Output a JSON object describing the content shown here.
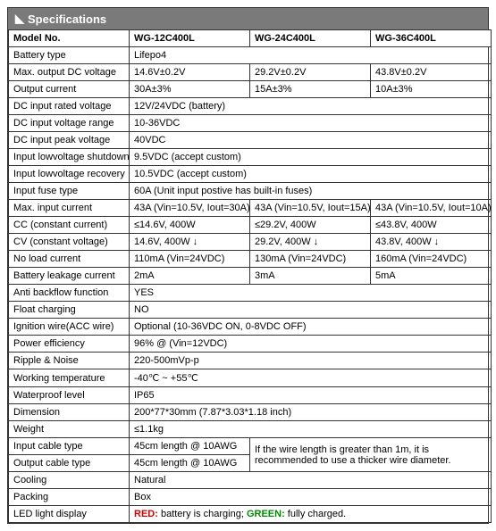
{
  "header": {
    "icon": "◣",
    "title": "Specifications"
  },
  "rows": {
    "model": {
      "label": "Model No.",
      "v1": "WG-12C400L",
      "v2": "WG-24C400L",
      "v3": "WG-36C400L"
    },
    "battery": {
      "label": "Battery type",
      "value": "Lifepo4"
    },
    "maxdc": {
      "label": "Max. output DC voltage",
      "v1": "14.6V±0.2V",
      "v2": "29.2V±0.2V",
      "v3": "43.8V±0.2V"
    },
    "outcur": {
      "label": "Output current",
      "v1": "30A±3%",
      "v2": "15A±3%",
      "v3": "10A±3%"
    },
    "dcin_rated": {
      "label": "DC input rated voltage",
      "value": "12V/24VDC (battery)"
    },
    "dcin_range": {
      "label": "DC input voltage range",
      "value": "10-36VDC"
    },
    "dcin_peak": {
      "label": "DC input peak voltage",
      "value": "40VDC"
    },
    "lv_shut": {
      "label": "Input lowvoltage shutdown",
      "value": "9.5VDC (accept custom)"
    },
    "lv_rec": {
      "label": "Input lowvoltage recovery",
      "value": "10.5VDC (accept custom)"
    },
    "fuse": {
      "label": "Input fuse type",
      "value": "60A (Unit input postive has built-in fuses)"
    },
    "maxin": {
      "label": "Max. input current",
      "v1": "43A (Vin=10.5V, Iout=30A)",
      "v2": "43A (Vin=10.5V, Iout=15A)",
      "v3": "43A (Vin=10.5V, Iout=10A)"
    },
    "cc": {
      "label": "CC (constant current)",
      "v1": "≤14.6V, 400W",
      "v2": "≤29.2V, 400W",
      "v3": "≤43.8V, 400W"
    },
    "cv": {
      "label": "CV (constant voltage)",
      "v1": "14.6V, 400W ↓",
      "v2": "29.2V, 400W ↓",
      "v3": "43.8V, 400W ↓"
    },
    "noload": {
      "label": "No load current",
      "v1": "110mA (Vin=24VDC)",
      "v2": "130mA (Vin=24VDC)",
      "v3": "160mA (Vin=24VDC)"
    },
    "leak": {
      "label": "Battery leakage current",
      "v1": "2mA",
      "v2": "3mA",
      "v3": "5mA"
    },
    "backflow": {
      "label": "Anti backflow function",
      "value": "YES"
    },
    "float": {
      "label": "Float charging",
      "value": "NO"
    },
    "ign": {
      "label": "Ignition wire(ACC wire)",
      "value": "Optional (10-36VDC ON, 0-8VDC OFF)"
    },
    "eff": {
      "label": "Power efficiency",
      "value": "96% @ (Vin=12VDC)"
    },
    "ripple": {
      "label": "Ripple & Noise",
      "value": "220-500mVp-p"
    },
    "temp": {
      "label": "Working temperature",
      "value": "-40℃ ~ +55℃"
    },
    "wp": {
      "label": "Waterproof level",
      "value": "IP65"
    },
    "dim": {
      "label": "Dimension",
      "value": "200*77*30mm (7.87*3.03*1.18 inch)"
    },
    "weight": {
      "label": "Weight",
      "value": "≤1.1kg"
    },
    "incable": {
      "label": "Input cable type",
      "value": "45cm length @ 10AWG"
    },
    "outcable": {
      "label": "Output cable type",
      "value": "45cm length @ 10AWG"
    },
    "cable_note": {
      "value": "If the wire length is greater than 1m, it is recommended to use a thicker wire diameter."
    },
    "cool": {
      "label": "Cooling",
      "value": "Natural"
    },
    "pack": {
      "label": "Packing",
      "value": "Box"
    },
    "led": {
      "label": "LED light display",
      "red_label": "RED:",
      "red_text": " battery is charging; ",
      "green_label": "GREEN:",
      "green_text": " fully charged."
    }
  }
}
